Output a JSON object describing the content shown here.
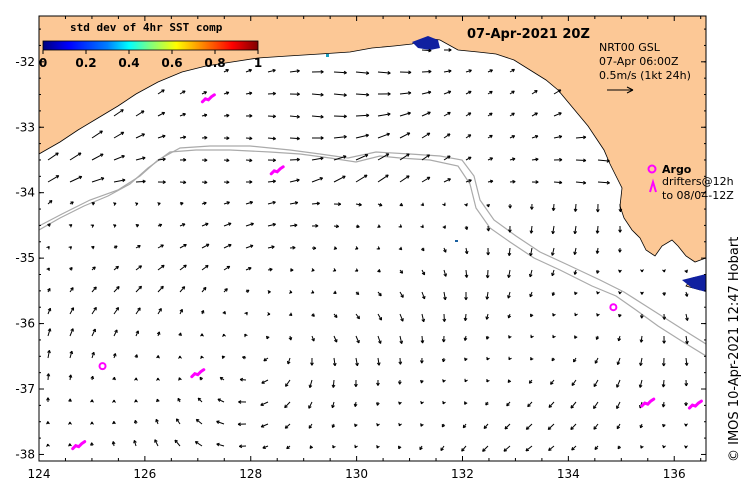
{
  "map": {
    "title": "07-Apr-2021 20Z",
    "info": {
      "line1": "NRT00 GSL",
      "line2": "07-Apr 06:00Z",
      "line3": "0.5m/s (1kt 24h)"
    },
    "colorbar": {
      "title": "std dev of 4hr SST comp",
      "ticks": [
        "0",
        "0.2",
        "0.4",
        "0.6",
        "0.8",
        "1"
      ],
      "tick_values": [
        0,
        0.2,
        0.4,
        0.6,
        0.8,
        1
      ],
      "colormap": [
        "#00007f",
        "#0000ff",
        "#007fff",
        "#00ffff",
        "#7fff7f",
        "#ffff00",
        "#ff7f00",
        "#ff0000",
        "#7f0000"
      ]
    },
    "legend": {
      "argo_label": "Argo",
      "drifter_line1": "drifters@12h",
      "drifter_line2": "to 08/04-12Z"
    },
    "side_label": "© IMOS 10-Apr-2021 12:47 Hobart",
    "x_axis": {
      "ticks": [
        "124",
        "126",
        "128",
        "130",
        "132",
        "134",
        "136"
      ],
      "values": [
        124,
        126,
        128,
        130,
        132,
        134,
        136
      ],
      "range": [
        124,
        136.6
      ]
    },
    "y_axis": {
      "ticks": [
        "-32",
        "-33",
        "-34",
        "-35",
        "-36",
        "-37",
        "-38"
      ],
      "values": [
        -32,
        -33,
        -34,
        -35,
        -36,
        -37,
        -38
      ],
      "range": [
        -38.1,
        -31.3
      ]
    },
    "argo_floats": [
      {
        "lon": 125.2,
        "lat": -36.65
      },
      {
        "lon": 134.85,
        "lat": -35.75
      }
    ],
    "drifters": [
      {
        "lon": 127.2,
        "lat": -32.55
      },
      {
        "lon": 128.5,
        "lat": -33.65
      },
      {
        "lon": 127.0,
        "lat": -36.75
      },
      {
        "lon": 124.75,
        "lat": -37.85
      },
      {
        "lon": 135.5,
        "lat": -37.2
      },
      {
        "lon": 136.4,
        "lat": -37.23
      }
    ],
    "colors": {
      "land": "#fcc896",
      "coast": "#000000",
      "shelf": "#aaaaaa",
      "argo": "#ff00ff",
      "drifter": "#ff00ff",
      "arrow": "#000000",
      "frame": "#000000"
    }
  }
}
